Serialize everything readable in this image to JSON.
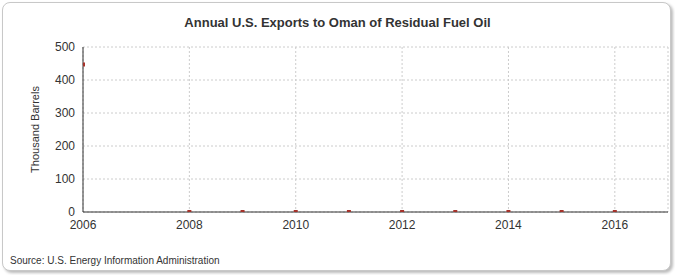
{
  "chart_data": {
    "type": "scatter",
    "title": "Annual U.S. Exports to Oman of Residual Fuel Oil",
    "y_label": "Thousand Barrels",
    "source": "Source: U.S. Energy Information Administration",
    "x": [
      2006,
      2008,
      2009,
      2010,
      2011,
      2012,
      2013,
      2014,
      2015,
      2016
    ],
    "values": [
      447,
      0,
      0,
      0,
      0,
      0,
      0,
      0,
      0,
      0
    ],
    "color": "#a6322a",
    "marker": "square",
    "xlim": [
      2006,
      2017
    ],
    "xticks": [
      2006,
      2008,
      2010,
      2012,
      2014,
      2016
    ],
    "ylim": [
      0,
      500
    ],
    "yticks": [
      0,
      100,
      200,
      300,
      400,
      500
    ],
    "grid": true
  }
}
